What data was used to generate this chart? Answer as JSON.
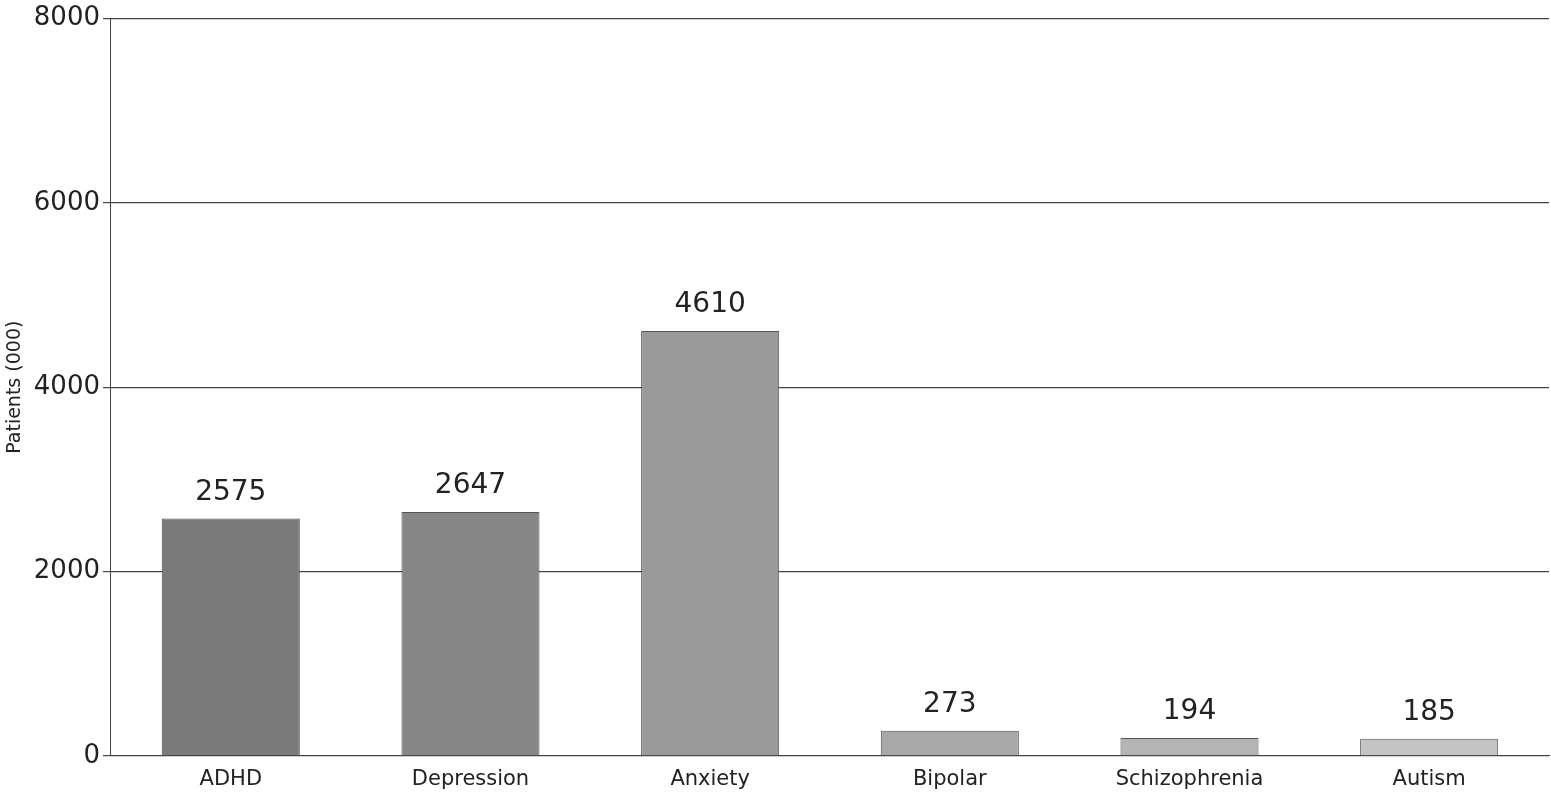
{
  "chart_data": {
    "type": "bar",
    "ylabel": "Patients (000)",
    "categories": [
      "ADHD",
      "Depression",
      "Anxiety",
      "Bipolar",
      "Schizophrenia",
      "Autism"
    ],
    "values": [
      2575,
      2647,
      4610,
      273,
      194,
      185
    ],
    "colors": [
      "#7a7a7a",
      "#868686",
      "#9a9a9a",
      "#a8a8a8",
      "#b4b4b4",
      "#c4c4c4"
    ],
    "ylim": [
      0,
      8000
    ],
    "yticks": [
      0,
      2000,
      4000,
      6000,
      8000
    ],
    "grid": "y",
    "data_labels": true,
    "legend": false
  }
}
